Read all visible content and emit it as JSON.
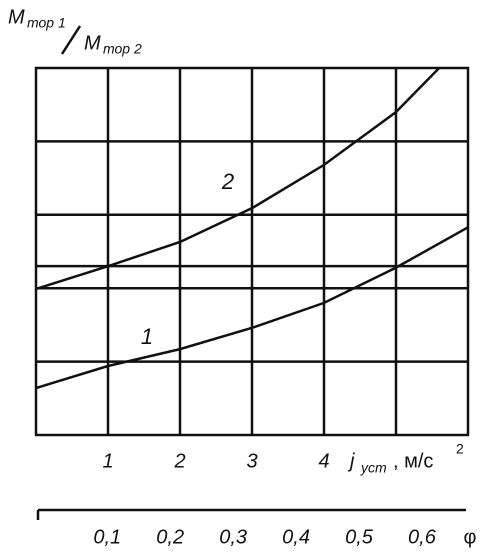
{
  "chart_data": {
    "type": "line",
    "y_label": {
      "top_symbol": "M",
      "top_subscript": "тор 1",
      "bottom_symbol": "M",
      "bottom_subscript": "тор 2"
    },
    "x_label": {
      "symbol": "j",
      "subscript": "уст",
      "unit": ", м/с",
      "unit_power": "2"
    },
    "xlim": [
      0,
      6
    ],
    "xticks": [
      1,
      2,
      3,
      4
    ],
    "xgrid": [
      1,
      2,
      3,
      4,
      5
    ],
    "ylim": [
      0,
      5
    ],
    "ygrid": [
      1,
      2,
      2.3,
      3,
      4
    ],
    "color": "#111111",
    "series": [
      {
        "name": "1",
        "x": [
          0,
          1,
          2,
          3,
          4,
          5,
          6
        ],
        "values": [
          0.64,
          0.94,
          1.17,
          1.46,
          1.8,
          2.28,
          2.83
        ]
      },
      {
        "name": "2",
        "x": [
          0,
          1,
          2,
          3,
          4,
          5,
          5.6
        ],
        "values": [
          1.99,
          2.3,
          2.63,
          3.09,
          3.68,
          4.4,
          5.0
        ]
      }
    ],
    "phi_axis": {
      "label": "φ",
      "lim": [
        -0.01,
        0.67
      ],
      "ticks": [
        {
          "value": 0.1,
          "label": "0,1"
        },
        {
          "value": 0.2,
          "label": "0,2"
        },
        {
          "value": 0.3,
          "label": "0,3"
        },
        {
          "value": 0.4,
          "label": "0,4"
        },
        {
          "value": 0.5,
          "label": "0,5"
        },
        {
          "value": 0.6,
          "label": "0,6"
        }
      ]
    }
  }
}
